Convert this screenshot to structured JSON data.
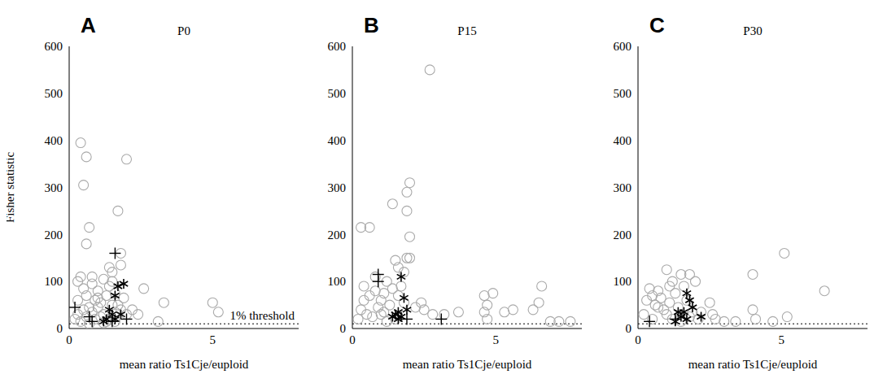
{
  "chart_data": [
    {
      "type": "scatter",
      "panel": "A",
      "title": "P0",
      "y_label": "Fisher statistic",
      "x_label": "mean ratio Ts1Cje/euploid",
      "xlim": [
        0,
        8
      ],
      "xticks": [
        0,
        5
      ],
      "ylim": [
        0,
        600
      ],
      "yticks": [
        0,
        100,
        200,
        300,
        400,
        500,
        600
      ],
      "reference_line": {
        "y": 10,
        "label": "1% threshold"
      },
      "series": [
        {
          "color": "#aaaaaa",
          "marker": "circle",
          "x": [
            0.4,
            0.6,
            2.0,
            0.5,
            1.7,
            0.7,
            0.6,
            1.8,
            1.8,
            1.5,
            0.4,
            0.3,
            0.5,
            0.8,
            1.0,
            1.2,
            1.4,
            1.6,
            0.9,
            1.1,
            1.3,
            0.7,
            0.5,
            0.3,
            1.5,
            1.9,
            2.2,
            2.6,
            3.3,
            3.1,
            5.0,
            5.2,
            0.6,
            0.8,
            1.0,
            1.2,
            1.4,
            1.6,
            1.8,
            0.4,
            0.9,
            1.1,
            1.3,
            1.7,
            2.0,
            0.3,
            0.6,
            1.0,
            1.5,
            2.4,
            0.2,
            0.7,
            1.2,
            1.6,
            0.8,
            1.4
          ],
          "values": [
            395,
            365,
            360,
            305,
            250,
            215,
            180,
            160,
            135,
            120,
            110,
            100,
            85,
            95,
            80,
            105,
            90,
            75,
            60,
            55,
            70,
            45,
            40,
            30,
            50,
            65,
            40,
            85,
            55,
            15,
            55,
            35,
            25,
            35,
            45,
            30,
            20,
            35,
            40,
            15,
            20,
            25,
            15,
            50,
            30,
            60,
            70,
            65,
            100,
            30,
            20,
            10,
            12,
            15,
            110,
            130
          ]
        },
        {
          "color": "#000000",
          "marker": "asterisk",
          "x": [
            1.9,
            1.7,
            1.6,
            1.4,
            1.5,
            1.8,
            1.3,
            1.6,
            1.2
          ],
          "values": [
            95,
            90,
            70,
            40,
            30,
            30,
            20,
            20,
            15
          ]
        },
        {
          "color": "#000000",
          "marker": "plus",
          "x": [
            1.6,
            0.2,
            0.7,
            0.8,
            1.5,
            2.0
          ],
          "values": [
            160,
            45,
            25,
            15,
            15,
            20
          ]
        }
      ]
    },
    {
      "type": "scatter",
      "panel": "B",
      "title": "P15",
      "x_label": "mean ratio Ts1Cje/euploid",
      "xlim": [
        0,
        8
      ],
      "xticks": [
        0,
        5
      ],
      "ylim": [
        0,
        600
      ],
      "yticks": [
        0,
        100,
        200,
        300,
        400,
        500,
        600
      ],
      "reference_line": {
        "y": 10
      },
      "series": [
        {
          "color": "#aaaaaa",
          "marker": "circle",
          "x": [
            2.7,
            2.0,
            1.9,
            1.9,
            2.0,
            0.3,
            0.6,
            1.4,
            1.9,
            2.0,
            1.8,
            1.5,
            4.6,
            4.9,
            4.7,
            4.6,
            4.7,
            5.3,
            5.6,
            6.6,
            6.5,
            6.3,
            7.2,
            7.6,
            6.9,
            3.2,
            3.7,
            2.8,
            2.5,
            0.8,
            0.4,
            0.6,
            1.0,
            1.2,
            1.4,
            1.6,
            1.8,
            0.3,
            0.5,
            0.9,
            1.1,
            1.3,
            1.7,
            2.2,
            0.2,
            0.7,
            1.0,
            1.5,
            2.4,
            0.4,
            1.2,
            1.6,
            0.8,
            1.1
          ],
          "values": [
            550,
            310,
            290,
            250,
            195,
            215,
            215,
            265,
            150,
            150,
            120,
            145,
            70,
            75,
            50,
            35,
            20,
            35,
            40,
            90,
            55,
            40,
            15,
            15,
            15,
            30,
            35,
            30,
            40,
            80,
            90,
            70,
            60,
            100,
            85,
            70,
            55,
            40,
            30,
            45,
            35,
            50,
            90,
            45,
            20,
            25,
            30,
            20,
            55,
            60,
            15,
            130,
            110,
            75
          ]
        },
        {
          "color": "#000000",
          "marker": "asterisk",
          "x": [
            1.7,
            1.8,
            1.6,
            1.5,
            1.4,
            1.7,
            1.9,
            1.6
          ],
          "values": [
            110,
            65,
            35,
            30,
            25,
            25,
            40,
            20
          ]
        },
        {
          "color": "#000000",
          "marker": "plus",
          "x": [
            0.9,
            0.9,
            1.9,
            3.1
          ],
          "values": [
            115,
            100,
            20,
            20
          ]
        }
      ]
    },
    {
      "type": "scatter",
      "panel": "C",
      "title": "P30",
      "x_label": "mean ratio Ts1Cje/euploid",
      "xlim": [
        0,
        8
      ],
      "xticks": [
        0,
        5
      ],
      "ylim": [
        0,
        600
      ],
      "yticks": [
        0,
        100,
        200,
        300,
        400,
        500,
        600
      ],
      "reference_line": {
        "y": 10
      },
      "series": [
        {
          "color": "#aaaaaa",
          "marker": "circle",
          "x": [
            5.1,
            6.5,
            4.0,
            4.0,
            4.1,
            4.7,
            5.2,
            3.4,
            3.0,
            2.7,
            2.6,
            2.5,
            2.2,
            2.0,
            1.8,
            1.5,
            1.2,
            1.0,
            0.4,
            0.7,
            0.3,
            0.5,
            0.6,
            0.8,
            0.9,
            1.1,
            1.3,
            1.4,
            1.6,
            1.7,
            1.9,
            2.1,
            0.2,
            0.5,
            1.0,
            1.2,
            1.5,
            1.8,
            0.7,
            1.1
          ],
          "values": [
            160,
            80,
            115,
            40,
            20,
            15,
            25,
            15,
            15,
            20,
            30,
            55,
            35,
            100,
            115,
            115,
            100,
            125,
            85,
            80,
            60,
            70,
            50,
            65,
            40,
            55,
            75,
            45,
            90,
            60,
            35,
            20,
            30,
            20,
            30,
            20,
            15,
            25,
            45,
            90
          ]
        },
        {
          "color": "#000000",
          "marker": "asterisk",
          "x": [
            1.7,
            1.8,
            1.9,
            2.2,
            1.4,
            1.6,
            1.5,
            1.3,
            1.7
          ],
          "values": [
            75,
            60,
            45,
            25,
            35,
            35,
            25,
            15,
            20
          ]
        },
        {
          "color": "#000000",
          "marker": "plus",
          "x": [
            0.4,
            1.3
          ],
          "values": [
            15,
            20
          ]
        }
      ]
    }
  ]
}
